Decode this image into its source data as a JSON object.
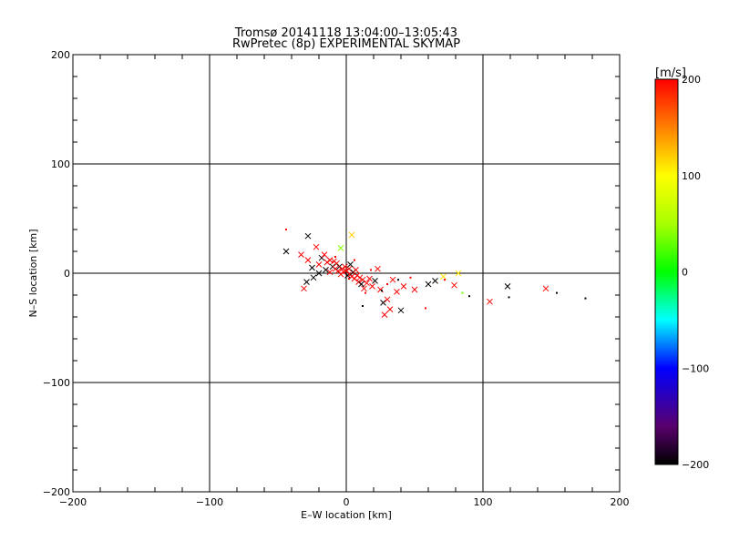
{
  "chart_data": {
    "type": "scatter",
    "title": "Tromsø 20141118 13:04:00–13:05:43",
    "subtitle": "RwPretec (8p) EXPERIMENTAL SKYMAP",
    "xlabel": "E–W location [km]",
    "ylabel": "N–S location [km]",
    "xlim": [
      -200,
      200
    ],
    "ylim": [
      -200,
      200
    ],
    "xticks": [
      -200,
      -100,
      0,
      100,
      200
    ],
    "yticks": [
      -200,
      -100,
      0,
      100,
      200
    ],
    "xtick_labels": [
      "−200",
      "−100",
      "0",
      "100",
      "200"
    ],
    "ytick_labels": [
      "−200",
      "−100",
      "0",
      "100",
      "200"
    ],
    "grid": true,
    "colorbar": {
      "label": "[m/s]",
      "range": [
        -200,
        200
      ],
      "ticks": [
        -200,
        -100,
        0,
        100,
        200
      ],
      "tick_labels": [
        "−200",
        "−100",
        "0",
        "100",
        "200"
      ]
    },
    "points": [
      {
        "x": -44,
        "y": 20,
        "v": -200,
        "m": "x"
      },
      {
        "x": -44,
        "y": 40,
        "v": 200,
        "m": "dot"
      },
      {
        "x": -33,
        "y": 17,
        "v": 200,
        "m": "x"
      },
      {
        "x": -28,
        "y": 34,
        "v": -200,
        "m": "x"
      },
      {
        "x": -28,
        "y": 12,
        "v": 200,
        "m": "x"
      },
      {
        "x": -25,
        "y": 5,
        "v": -200,
        "m": "x"
      },
      {
        "x": -22,
        "y": 24,
        "v": 200,
        "m": "x"
      },
      {
        "x": -20,
        "y": 8,
        "v": 200,
        "m": "x"
      },
      {
        "x": -18,
        "y": 14,
        "v": -200,
        "m": "x"
      },
      {
        "x": -16,
        "y": 17,
        "v": 200,
        "m": "x"
      },
      {
        "x": -15,
        "y": 3,
        "v": -200,
        "m": "x"
      },
      {
        "x": -14,
        "y": 10,
        "v": 200,
        "m": "x"
      },
      {
        "x": -12,
        "y": 12,
        "v": 200,
        "m": "x"
      },
      {
        "x": -12,
        "y": 1,
        "v": 200,
        "m": "x"
      },
      {
        "x": -10,
        "y": 6,
        "v": -200,
        "m": "x"
      },
      {
        "x": -9,
        "y": 11,
        "v": 200,
        "m": "x"
      },
      {
        "x": -8,
        "y": 4,
        "v": 200,
        "m": "x"
      },
      {
        "x": -7,
        "y": 9,
        "v": 200,
        "m": "x"
      },
      {
        "x": -6,
        "y": 2,
        "v": 200,
        "m": "x"
      },
      {
        "x": -5,
        "y": 6,
        "v": -200,
        "m": "x"
      },
      {
        "x": -4,
        "y": 23,
        "v": 40,
        "m": "x"
      },
      {
        "x": -4,
        "y": -1,
        "v": 200,
        "m": "x"
      },
      {
        "x": -3,
        "y": 4,
        "v": 200,
        "m": "x"
      },
      {
        "x": -2,
        "y": 1,
        "v": 200,
        "m": "x"
      },
      {
        "x": -1,
        "y": 6,
        "v": 200,
        "m": "x"
      },
      {
        "x": 0,
        "y": 2,
        "v": 200,
        "m": "x"
      },
      {
        "x": 1,
        "y": -2,
        "v": -200,
        "m": "x"
      },
      {
        "x": 2,
        "y": 4,
        "v": 200,
        "m": "x"
      },
      {
        "x": 3,
        "y": -1,
        "v": 200,
        "m": "x"
      },
      {
        "x": 3,
        "y": 8,
        "v": -200,
        "m": "x"
      },
      {
        "x": 4,
        "y": 35,
        "v": 120,
        "m": "x"
      },
      {
        "x": 4,
        "y": -3,
        "v": 200,
        "m": "x"
      },
      {
        "x": 5,
        "y": 1,
        "v": -200,
        "m": "x"
      },
      {
        "x": 6,
        "y": -5,
        "v": 200,
        "m": "x"
      },
      {
        "x": 7,
        "y": 3,
        "v": 200,
        "m": "x"
      },
      {
        "x": 8,
        "y": -2,
        "v": 200,
        "m": "x"
      },
      {
        "x": 9,
        "y": -8,
        "v": 200,
        "m": "x"
      },
      {
        "x": 10,
        "y": -4,
        "v": 200,
        "m": "x"
      },
      {
        "x": 11,
        "y": -10,
        "v": -200,
        "m": "x"
      },
      {
        "x": 12,
        "y": -6,
        "v": 200,
        "m": "x"
      },
      {
        "x": 13,
        "y": -14,
        "v": 200,
        "m": "x"
      },
      {
        "x": 15,
        "y": -9,
        "v": 200,
        "m": "x"
      },
      {
        "x": 17,
        "y": -5,
        "v": 200,
        "m": "x"
      },
      {
        "x": 19,
        "y": -12,
        "v": 200,
        "m": "x"
      },
      {
        "x": 21,
        "y": -7,
        "v": -200,
        "m": "x"
      },
      {
        "x": 23,
        "y": 4,
        "v": 200,
        "m": "x"
      },
      {
        "x": 25,
        "y": -15,
        "v": 200,
        "m": "x"
      },
      {
        "x": 27,
        "y": -27,
        "v": -200,
        "m": "x"
      },
      {
        "x": 28,
        "y": -38,
        "v": 200,
        "m": "x"
      },
      {
        "x": 30,
        "y": -24,
        "v": 200,
        "m": "x"
      },
      {
        "x": 32,
        "y": -33,
        "v": 200,
        "m": "x"
      },
      {
        "x": 34,
        "y": -6,
        "v": 200,
        "m": "x"
      },
      {
        "x": 37,
        "y": -17,
        "v": 200,
        "m": "x"
      },
      {
        "x": 40,
        "y": -34,
        "v": -200,
        "m": "x"
      },
      {
        "x": 42,
        "y": -12,
        "v": 200,
        "m": "x"
      },
      {
        "x": 50,
        "y": -15,
        "v": 200,
        "m": "x"
      },
      {
        "x": 60,
        "y": -10,
        "v": -200,
        "m": "x"
      },
      {
        "x": 65,
        "y": -7,
        "v": -200,
        "m": "x"
      },
      {
        "x": 71,
        "y": -3,
        "v": 110,
        "m": "x"
      },
      {
        "x": 79,
        "y": -11,
        "v": 200,
        "m": "x"
      },
      {
        "x": 82,
        "y": 0,
        "v": 110,
        "m": "x"
      },
      {
        "x": 105,
        "y": -26,
        "v": 200,
        "m": "x"
      },
      {
        "x": 118,
        "y": -12,
        "v": -200,
        "m": "x"
      },
      {
        "x": 146,
        "y": -14,
        "v": 200,
        "m": "x"
      },
      {
        "x": -31,
        "y": -14,
        "v": 200,
        "m": "x"
      },
      {
        "x": -29,
        "y": -8,
        "v": -200,
        "m": "x"
      },
      {
        "x": -24,
        "y": -4,
        "v": -200,
        "m": "x"
      },
      {
        "x": -20,
        "y": 0,
        "v": -200,
        "m": "x"
      },
      {
        "x": 2,
        "y": -5,
        "v": 200,
        "m": "dot"
      },
      {
        "x": 14,
        "y": -18,
        "v": 200,
        "m": "dot"
      },
      {
        "x": 18,
        "y": 3,
        "v": 200,
        "m": "dot"
      },
      {
        "x": 26,
        "y": -16,
        "v": -200,
        "m": "dot"
      },
      {
        "x": 38,
        "y": -6,
        "v": -200,
        "m": "dot"
      },
      {
        "x": 47,
        "y": -4,
        "v": 200,
        "m": "dot"
      },
      {
        "x": 58,
        "y": -32,
        "v": 200,
        "m": "dot"
      },
      {
        "x": 72,
        "y": -6,
        "v": 200,
        "m": "dot"
      },
      {
        "x": 85,
        "y": -18,
        "v": 30,
        "m": "dot"
      },
      {
        "x": 90,
        "y": -21,
        "v": -200,
        "m": "dot"
      },
      {
        "x": 119,
        "y": -22,
        "v": -200,
        "m": "dot"
      },
      {
        "x": 154,
        "y": -18,
        "v": -200,
        "m": "dot"
      },
      {
        "x": 175,
        "y": -23,
        "v": -200,
        "m": "dot"
      },
      {
        "x": 12,
        "y": -30,
        "v": -200,
        "m": "dot"
      },
      {
        "x": -10,
        "y": 10,
        "v": 200,
        "m": "dot"
      },
      {
        "x": -8,
        "y": 15,
        "v": 200,
        "m": "dot"
      },
      {
        "x": 6,
        "y": 12,
        "v": 200,
        "m": "dot"
      },
      {
        "x": 30,
        "y": -10,
        "v": 200,
        "m": "dot"
      }
    ]
  }
}
